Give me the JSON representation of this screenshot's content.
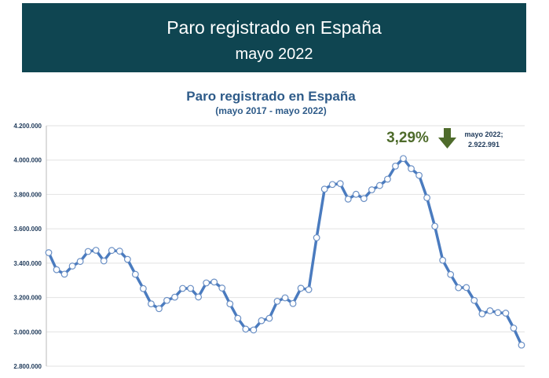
{
  "header": {
    "title": "Paro registrado en España",
    "subtitle": "mayo 2022"
  },
  "colors": {
    "header_bg": "#0f4551",
    "line": "#4a7bbf",
    "title_text": "#2e5b89",
    "percent_text": "#4e6b2b",
    "arrow": "#4e6b2b"
  },
  "annotation": {
    "percent": "3,29%",
    "arrow_icon": "arrow-down-icon",
    "label_line1": "mayo 2022;",
    "label_line2": "2.922.991"
  },
  "chart_data": {
    "type": "line",
    "title": "Paro registrado en España",
    "subtitle": "(mayo 2017 - mayo 2022)",
    "xlabel": "",
    "ylabel": "",
    "ylim": [
      2800000,
      4200000
    ],
    "yticks": [
      2800000,
      3000000,
      3200000,
      3400000,
      3600000,
      3800000,
      4000000,
      4200000
    ],
    "ytick_labels": [
      "2.800.000",
      "3.000.000",
      "3.200.000",
      "3.400.000",
      "3.600.000",
      "3.800.000",
      "4.000.000",
      "4.200.000"
    ],
    "grid": true,
    "x_start": "2017-05",
    "x_end": "2022-05",
    "series": [
      {
        "values": [
          3461000,
          3362000,
          3336000,
          3383000,
          3410000,
          3468000,
          3475000,
          3413000,
          3474000,
          3470000,
          3422000,
          3335000,
          3252000,
          3163000,
          3135000,
          3183000,
          3202000,
          3253000,
          3253000,
          3203000,
          3285000,
          3290000,
          3255000,
          3163000,
          3079000,
          3016000,
          3011000,
          3065000,
          3079000,
          3178000,
          3198000,
          3165000,
          3254000,
          3246000,
          3548000,
          3831000,
          3858000,
          3863000,
          3773000,
          3801000,
          3776000,
          3827000,
          3852000,
          3889000,
          3965000,
          4009000,
          3950000,
          3911000,
          3781000,
          3615000,
          3417000,
          3334000,
          3257000,
          3258000,
          3183000,
          3105000,
          3123000,
          3112000,
          3109000,
          3022000,
          2922991
        ]
      }
    ]
  }
}
